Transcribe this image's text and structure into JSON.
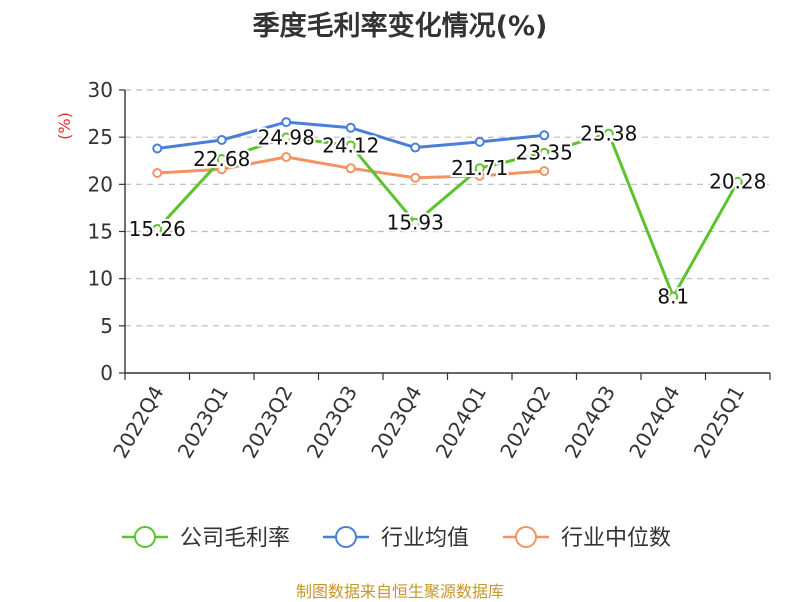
{
  "chart_data": {
    "type": "line",
    "title": "季度毛利率变化情况(%)",
    "ylabel": "(%)",
    "xlabel": "",
    "categories": [
      "2022Q4",
      "2023Q1",
      "2023Q2",
      "2023Q3",
      "2023Q4",
      "2024Q1",
      "2024Q2",
      "2024Q3",
      "2024Q4",
      "2025Q1"
    ],
    "ylim": [
      0,
      30
    ],
    "yticks": [
      0,
      5,
      10,
      15,
      20,
      25,
      30
    ],
    "grid": "horizontal dashed",
    "legend_position": "bottom",
    "series": [
      {
        "name": "公司毛利率",
        "color": "#5bc42d",
        "values": [
          15.26,
          22.68,
          24.98,
          24.12,
          15.93,
          21.71,
          23.35,
          25.38,
          8.1,
          20.28
        ],
        "labels": [
          "15.26",
          "22.68",
          "24.98",
          "24.12",
          "15.93",
          "21.71",
          "23.35",
          "25.38",
          "8.1",
          "20.28"
        ]
      },
      {
        "name": "行业均值",
        "color": "#4a7fd8",
        "values": [
          23.8,
          24.7,
          26.6,
          26.0,
          23.9,
          24.5,
          25.2,
          null,
          null,
          null
        ]
      },
      {
        "name": "行业中位数",
        "color": "#f39362",
        "values": [
          21.2,
          21.6,
          22.9,
          21.7,
          20.7,
          20.9,
          21.4,
          null,
          null,
          null
        ]
      }
    ]
  },
  "footer": {
    "source": "制图数据来自恒生聚源数据库"
  },
  "colors": {
    "title": "#333333",
    "ylabel": "#e03131",
    "axis": "#333333",
    "grid": "#bbbbbb",
    "source": "#c8962a"
  }
}
